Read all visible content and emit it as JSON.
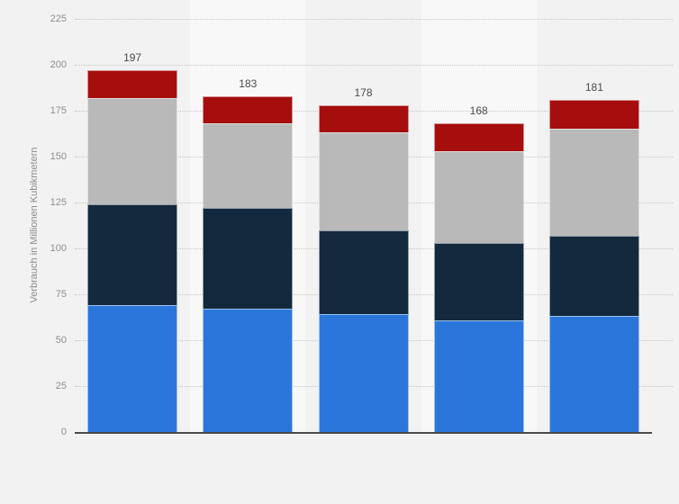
{
  "page": {
    "background_color": "#f2f2f2",
    "band_alt_color": "#f8f8f8",
    "gridline_color": "#c6c6c6",
    "axis_line_color": "#4a4a4a",
    "tick_label_color": "#8e8e8e",
    "total_label_color": "#4a4a4a"
  },
  "chart_data": {
    "type": "bar",
    "stacked": true,
    "title": "",
    "xlabel": "",
    "ylabel": "Verbrauch in Millionen Kubikmetern",
    "ylim": [
      0,
      225
    ],
    "yticks": [
      0,
      25,
      50,
      75,
      100,
      125,
      150,
      175,
      200,
      225
    ],
    "grid": "horizontal-dotted",
    "legend_visible": false,
    "x_tick_labels_visible": false,
    "categories": [
      "",
      "",
      "",
      "",
      ""
    ],
    "series": [
      {
        "name": "segment-blue",
        "color": "#2A76DB",
        "values": [
          69,
          67,
          64,
          61,
          63
        ]
      },
      {
        "name": "segment-navy",
        "color": "#13293D",
        "values": [
          55,
          55,
          46,
          42,
          44
        ]
      },
      {
        "name": "segment-gray",
        "color": "#B9B9B9",
        "values": [
          58,
          46,
          53,
          50,
          58
        ]
      },
      {
        "name": "segment-red",
        "color": "#A60D0D",
        "values": [
          15,
          15,
          15,
          15,
          16
        ]
      }
    ],
    "totals": [
      197,
      183,
      178,
      168,
      181
    ]
  }
}
